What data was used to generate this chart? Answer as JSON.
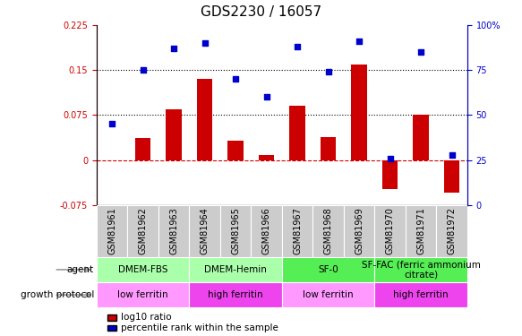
{
  "title": "GDS2230 / 16057",
  "samples": [
    "GSM81961",
    "GSM81962",
    "GSM81963",
    "GSM81964",
    "GSM81965",
    "GSM81966",
    "GSM81967",
    "GSM81968",
    "GSM81969",
    "GSM81970",
    "GSM81971",
    "GSM81972"
  ],
  "log10_ratio": [
    0.0,
    0.037,
    0.085,
    0.135,
    0.032,
    0.008,
    0.09,
    0.038,
    0.16,
    -0.048,
    0.075,
    -0.055
  ],
  "percentile_rank": [
    45,
    75,
    87,
    90,
    70,
    60,
    88,
    74,
    91,
    26,
    85,
    28
  ],
  "ylim_left": [
    -0.075,
    0.225
  ],
  "ylim_right": [
    0,
    100
  ],
  "hlines": [
    0.075,
    0.15
  ],
  "agent_groups": [
    {
      "label": "DMEM-FBS",
      "start": 0,
      "end": 3,
      "color": "#AAFFAA"
    },
    {
      "label": "DMEM-Hemin",
      "start": 3,
      "end": 6,
      "color": "#AAFFAA"
    },
    {
      "label": "SF-0",
      "start": 6,
      "end": 9,
      "color": "#55EE55"
    },
    {
      "label": "SF-FAC (ferric ammonium\ncitrate)",
      "start": 9,
      "end": 12,
      "color": "#55EE55"
    }
  ],
  "growth_groups": [
    {
      "label": "low ferritin",
      "start": 0,
      "end": 3,
      "color": "#FF99FF"
    },
    {
      "label": "high ferritin",
      "start": 3,
      "end": 6,
      "color": "#EE44EE"
    },
    {
      "label": "low ferritin",
      "start": 6,
      "end": 9,
      "color": "#FF99FF"
    },
    {
      "label": "high ferritin",
      "start": 9,
      "end": 12,
      "color": "#EE44EE"
    }
  ],
  "bar_color": "#CC0000",
  "scatter_color": "#0000CC",
  "zero_line_color": "#CC0000",
  "hline_color": "#000000",
  "title_fontsize": 11,
  "tick_label_fontsize": 7,
  "legend_fontsize": 7.5,
  "row_label_fontsize": 7.5,
  "table_text_fontsize": 7.5
}
